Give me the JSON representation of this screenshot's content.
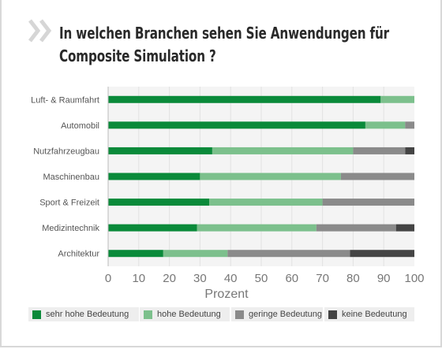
{
  "title": {
    "line1": "In welchen Branchen sehen Sie Anwendungen für",
    "line2": "Composite Simulation ?"
  },
  "colors": {
    "sehr_hohe": "#0a8a3a",
    "hohe": "#7cc08c",
    "geringe": "#8a8a8a",
    "keine": "#444444",
    "chevron": "#d6d6d6"
  },
  "chart_data": {
    "type": "bar",
    "orientation": "horizontal",
    "stacked": true,
    "title": "In welchen Branchen sehen Sie Anwendungen für Composite Simulation ?",
    "xlabel": "Prozent",
    "xlim": [
      0,
      100
    ],
    "x_ticks": [
      "0",
      "10",
      "20",
      "30",
      "40",
      "50",
      "60",
      "70",
      "80",
      "90",
      "100"
    ],
    "categories": [
      "Luft- & Raumfahrt",
      "Automobil",
      "Nutzfahrzeugbau",
      "Maschinenbau",
      "Sport & Freizeit",
      "Medizintechnik",
      "Architektur"
    ],
    "series": [
      {
        "name": "sehr hohe Bedeutung",
        "color": "#0a8a3a",
        "values": [
          89,
          84,
          34,
          30,
          33,
          29,
          18
        ]
      },
      {
        "name": "hohe Bedeutung",
        "color": "#7cc08c",
        "values": [
          11,
          13,
          46,
          46,
          37,
          39,
          21
        ]
      },
      {
        "name": "geringe Bedeutung",
        "color": "#8a8a8a",
        "values": [
          0,
          3,
          17,
          24,
          30,
          26,
          40
        ]
      },
      {
        "name": "keine Bedeutung",
        "color": "#444444",
        "values": [
          0,
          0,
          3,
          0,
          0,
          6,
          21
        ]
      }
    ],
    "legend_position": "bottom",
    "grid": true
  }
}
